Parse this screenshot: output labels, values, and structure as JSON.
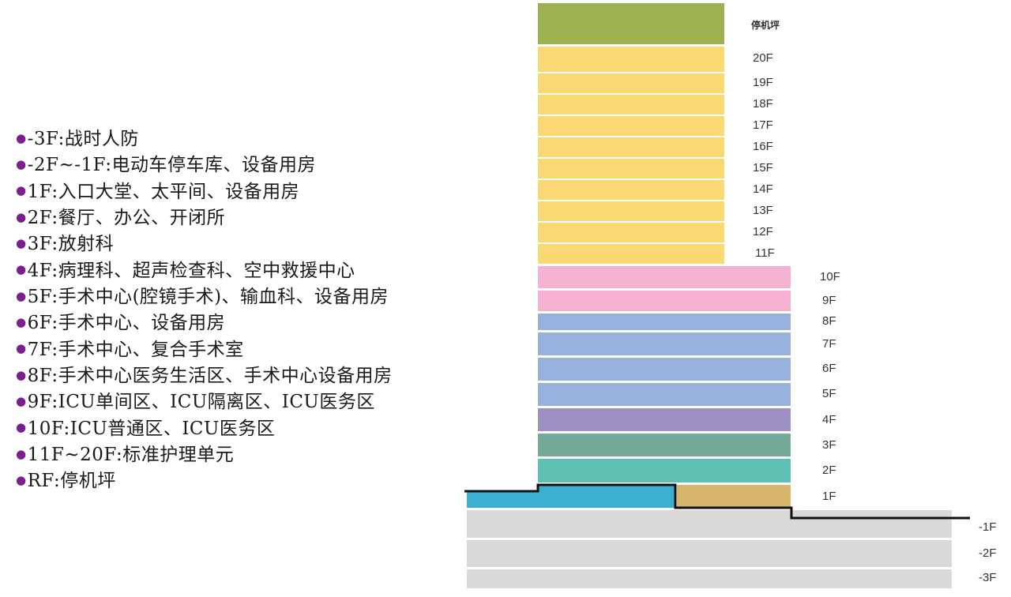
{
  "legend": [
    {
      "text": "-3F:战时人防"
    },
    {
      "text": "-2F~-1F:电动车停车库、设备用房"
    },
    {
      "text": "1F:入口大堂、太平间、设备用房"
    },
    {
      "text": "2F:餐厅、办公、开闭所"
    },
    {
      "text": "3F:放射科"
    },
    {
      "text": "4F:病理科、超声检查科、空中救援中心"
    },
    {
      "text": "5F:手术中心(腔镜手术)、输血科、设备用房"
    },
    {
      "text": "6F:手术中心、设备用房"
    },
    {
      "text": "7F:手术中心、复合手术室"
    },
    {
      "text": "8F:手术中心医务生活区、手术中心设备用房"
    },
    {
      "text": "9F:ICU单间区、ICU隔离区、ICU医务区"
    },
    {
      "text": "10F:ICU普通区、ICU医务区"
    },
    {
      "text": "11F~20F:标准护理单元"
    },
    {
      "text": "RF:停机坪"
    }
  ],
  "floors": {
    "rf": "停机坪",
    "f20": "20F",
    "f19": "19F",
    "f18": "18F",
    "f17": "17F",
    "f16": "16F",
    "f15": "15F",
    "f14": "14F",
    "f13": "13F",
    "f12": "12F",
    "f11": "11F",
    "f10": "10F",
    "f9": "9F",
    "f8": "8F",
    "f7": "7F",
    "f6": "6F",
    "f5": "5F",
    "f4": "4F",
    "f3": "3F",
    "f2": "2F",
    "f1": "1F",
    "b1": "-1F",
    "b2": "-2F",
    "b3": "-3F"
  },
  "colors": {
    "heliport": "#9bb24f",
    "ward": "#fad974",
    "icu": "#f5b2d1",
    "surgery": "#95b1dc",
    "pathology": "#9c91c2",
    "radiology": "#75a99a",
    "dining": "#5ec1b4",
    "lobby": "#3cb0d1",
    "lobby_service": "#d8b56d",
    "basement": "#d9d9d9"
  }
}
